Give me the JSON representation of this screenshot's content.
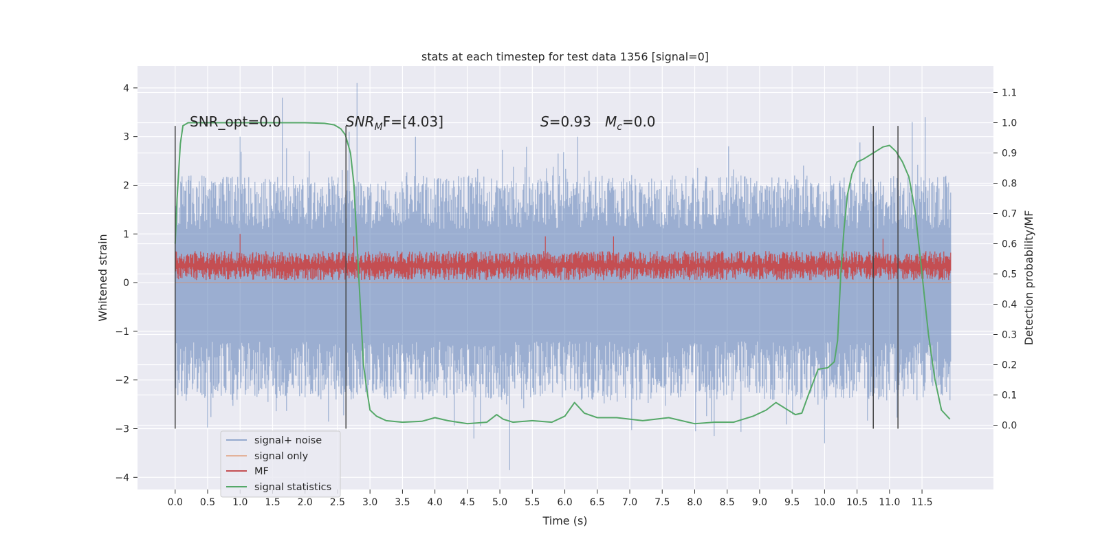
{
  "chart_data": {
    "type": "line",
    "title": "stats at each timestep for test data 1356 [signal=0]",
    "xlabel": "Time (s)",
    "ylabel": "Whitened strain",
    "y2label": "Detection probability/MF",
    "xlim": [
      -0.58,
      12.6
    ],
    "ylim": [
      -4.25,
      4.45
    ],
    "y2lim": [
      -0.2125,
      1.1875
    ],
    "xticks": [
      "0.0",
      "0.5",
      "1.0",
      "1.5",
      "2.0",
      "2.5",
      "3.0",
      "3.5",
      "4.0",
      "4.5",
      "5.0",
      "5.5",
      "6.0",
      "6.5",
      "7.0",
      "7.5",
      "8.0",
      "8.5",
      "9.0",
      "9.5",
      "10.0",
      "10.5",
      "11.0",
      "11.5"
    ],
    "yticks": [
      "4",
      "3",
      "2",
      "1",
      "0",
      "−1",
      "−2",
      "−3",
      "−4"
    ],
    "y2ticks": [
      "1.1",
      "1.0",
      "0.9",
      "0.8",
      "0.7",
      "0.6",
      "0.5",
      "0.4",
      "0.3",
      "0.2",
      "0.1",
      "0.0"
    ],
    "grid": true,
    "legend_position": "lower-left",
    "colors": {
      "background": "#eaeaf2",
      "grid": "#ffffff",
      "signal_noise": "#4c72b0",
      "signal_only": "#dd8452",
      "mf": "#c44e52",
      "statistics": "#55a868",
      "marker_lines": "#444444"
    },
    "annotations": {
      "snr_opt": "SNR_opt=0.0",
      "snr_mf_prefix": "SNR",
      "snr_mf_sub": "M",
      "snr_mf_suffix": "F=[4.03]",
      "s_label": "S",
      "s_value": "=0.93",
      "mc_label": "M",
      "mc_sub": "c",
      "mc_value": "=0.0"
    },
    "marker_lines_x": [
      0.0,
      2.63,
      10.75,
      11.13
    ],
    "series": [
      {
        "name": "signal+ noise",
        "axis": "left",
        "style": "noise",
        "t_range": [
          0.0,
          11.95
        ],
        "envelope_upper_typical": 2.0,
        "envelope_lower_typical": -2.2,
        "peaks": [
          [
            1.0,
            3.0
          ],
          [
            1.65,
            3.8
          ],
          [
            2.8,
            4.1
          ],
          [
            2.68,
            3.1
          ],
          [
            4.6,
            -3.2
          ],
          [
            5.15,
            -3.85
          ],
          [
            10.0,
            -3.3
          ],
          [
            11.35,
            3.3
          ],
          [
            11.55,
            3.4
          ],
          [
            8.3,
            -3.15
          ],
          [
            3.7,
            3.0
          ],
          [
            6.2,
            3.0
          ]
        ]
      },
      {
        "name": "signal only",
        "axis": "left",
        "style": "flat",
        "x": [
          0.0,
          11.95
        ],
        "y": [
          0.0,
          0.0
        ]
      },
      {
        "name": "MF",
        "axis": "left",
        "style": "mf",
        "t_range": [
          0.0,
          11.95
        ],
        "range_typical": [
          0.05,
          0.65
        ],
        "peaks": [
          [
            1.0,
            1.0
          ],
          [
            5.7,
            0.95
          ],
          [
            6.75,
            0.95
          ],
          [
            2.75,
            0.95
          ],
          [
            10.9,
            0.9
          ]
        ]
      },
      {
        "name": "signal statistics",
        "axis": "right",
        "style": "line",
        "x": [
          0.0,
          0.03,
          0.08,
          0.12,
          0.2,
          0.3,
          0.5,
          1.0,
          1.5,
          2.0,
          2.3,
          2.45,
          2.55,
          2.62,
          2.7,
          2.75,
          2.8,
          2.85,
          2.9,
          2.95,
          3.0,
          3.1,
          3.25,
          3.5,
          3.8,
          4.0,
          4.2,
          4.5,
          4.8,
          4.95,
          5.05,
          5.2,
          5.5,
          5.8,
          6.0,
          6.15,
          6.3,
          6.5,
          6.8,
          7.2,
          7.6,
          8.0,
          8.3,
          8.6,
          8.9,
          9.1,
          9.25,
          9.4,
          9.55,
          9.65,
          9.75,
          9.9,
          10.05,
          10.15,
          10.2,
          10.25,
          10.3,
          10.35,
          10.42,
          10.5,
          10.6,
          10.75,
          10.9,
          11.0,
          11.1,
          11.2,
          11.3,
          11.4,
          11.5,
          11.6,
          11.7,
          11.8,
          11.93
        ],
        "y": [
          0.6,
          0.75,
          0.93,
          0.99,
          1.0,
          1.0,
          1.0,
          1.0,
          1.0,
          1.0,
          0.998,
          0.993,
          0.98,
          0.96,
          0.9,
          0.8,
          0.6,
          0.4,
          0.2,
          0.12,
          0.05,
          0.03,
          0.015,
          0.01,
          0.013,
          0.025,
          0.015,
          0.005,
          0.01,
          0.035,
          0.02,
          0.01,
          0.015,
          0.01,
          0.03,
          0.075,
          0.04,
          0.025,
          0.025,
          0.015,
          0.025,
          0.005,
          0.01,
          0.01,
          0.03,
          0.05,
          0.075,
          0.055,
          0.035,
          0.04,
          0.1,
          0.185,
          0.19,
          0.21,
          0.28,
          0.5,
          0.65,
          0.76,
          0.83,
          0.87,
          0.88,
          0.9,
          0.92,
          0.925,
          0.905,
          0.87,
          0.82,
          0.7,
          0.5,
          0.3,
          0.15,
          0.05,
          0.02
        ]
      }
    ]
  }
}
